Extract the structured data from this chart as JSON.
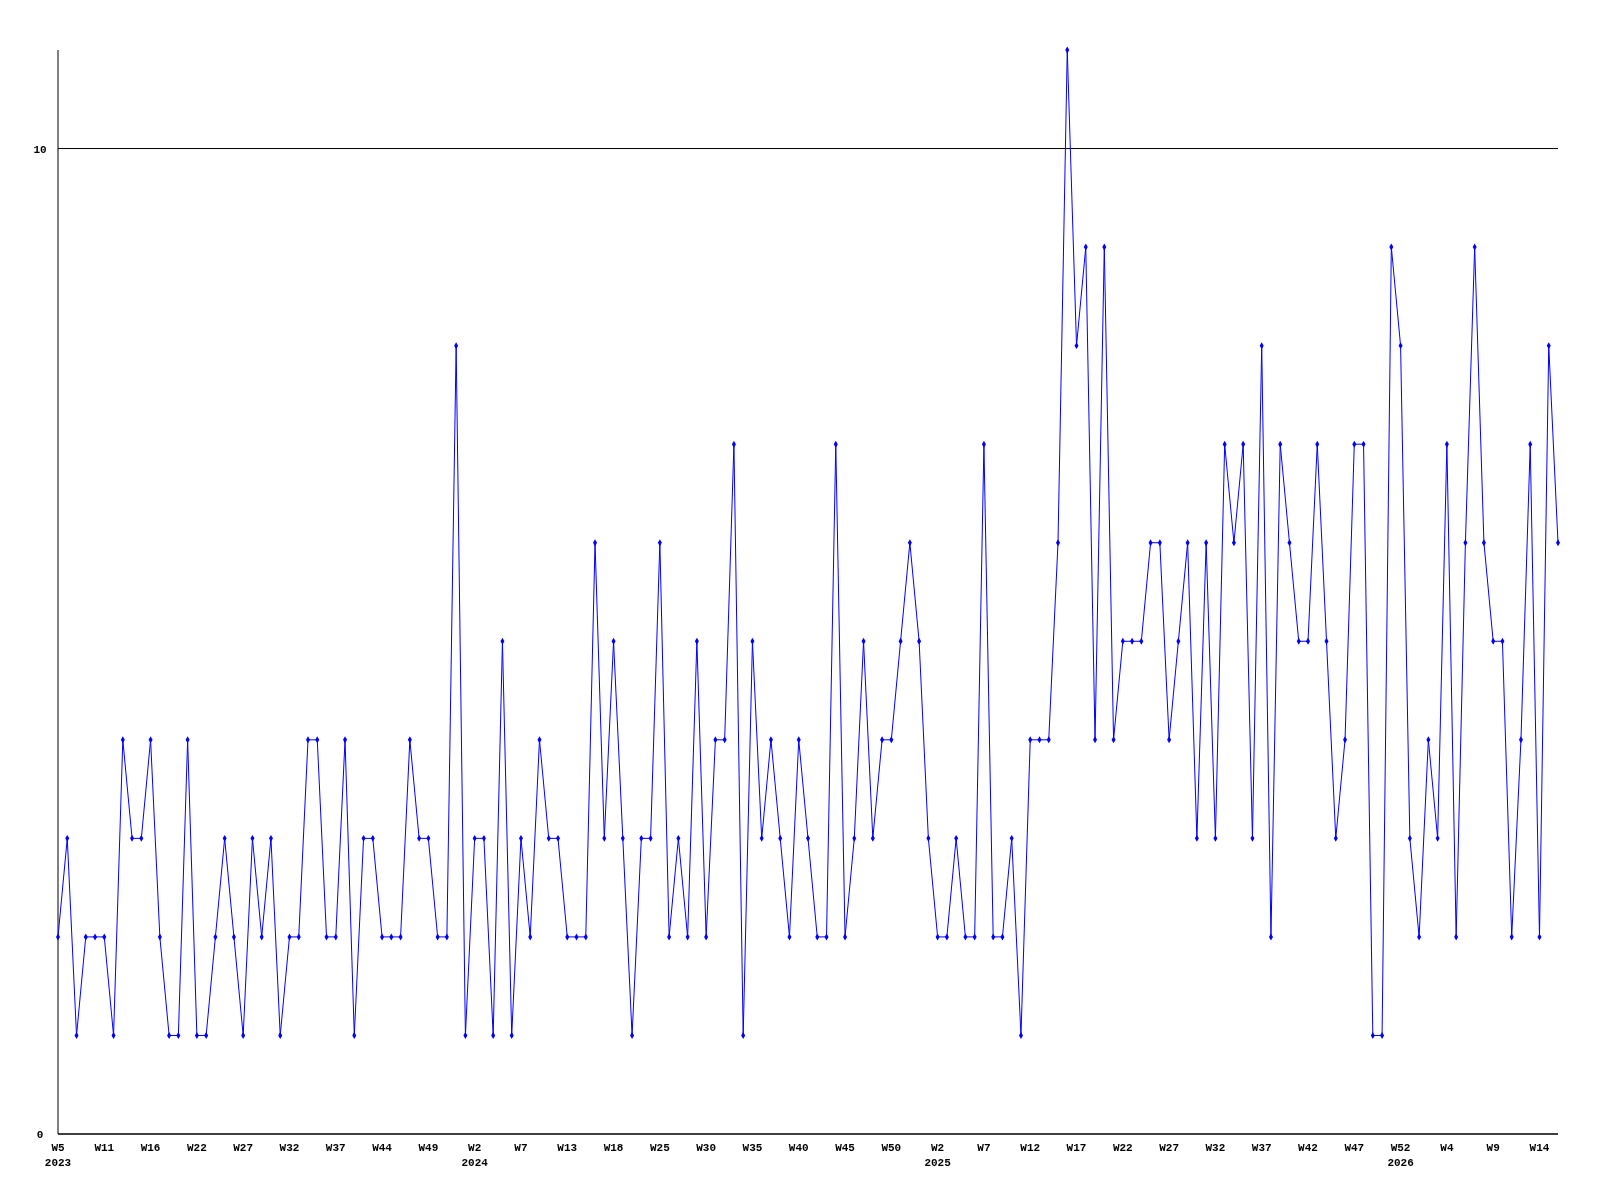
{
  "chart_data": {
    "type": "line",
    "categories": [
      "W5\n2023",
      null,
      null,
      null,
      null,
      "W11",
      null,
      null,
      null,
      null,
      "W16",
      null,
      null,
      null,
      null,
      "W22",
      null,
      null,
      null,
      null,
      "W27",
      null,
      null,
      null,
      null,
      "W32",
      null,
      null,
      null,
      null,
      "W37",
      null,
      null,
      null,
      null,
      "W44",
      null,
      null,
      null,
      null,
      "W49",
      null,
      null,
      null,
      null,
      "W2\n2024",
      null,
      null,
      null,
      null,
      "W7",
      null,
      null,
      null,
      null,
      "W13",
      null,
      null,
      null,
      null,
      "W18",
      null,
      null,
      null,
      null,
      "W25",
      null,
      null,
      null,
      null,
      "W30",
      null,
      null,
      null,
      null,
      "W35",
      null,
      null,
      null,
      null,
      "W40",
      null,
      null,
      null,
      null,
      "W45",
      null,
      null,
      null,
      null,
      "W50",
      null,
      null,
      null,
      null,
      "W2\n2025",
      null,
      null,
      null,
      null,
      "W7",
      null,
      null,
      null,
      null,
      "W12",
      null,
      null,
      null,
      null,
      "W17",
      null,
      null,
      null,
      null,
      "W22",
      null,
      null,
      null,
      null,
      "W27",
      null,
      null,
      null,
      null,
      "W32",
      null,
      null,
      null,
      null,
      "W37",
      null,
      null,
      null,
      null,
      "W42",
      null,
      null,
      null,
      null,
      "W47",
      null,
      null,
      null,
      null,
      "W52\n2026",
      null,
      null,
      null,
      null,
      "W4",
      null,
      null,
      null,
      null,
      "W9",
      null,
      null,
      null,
      null,
      "W14",
      null,
      null
    ],
    "series": [
      {
        "color": "#0000ff",
        "values": [
          2,
          3,
          1,
          2,
          2,
          2,
          1,
          4,
          3,
          3,
          4,
          2,
          1,
          1,
          4,
          1,
          1,
          2,
          3,
          2,
          1,
          3,
          2,
          3,
          1,
          2,
          2,
          4,
          4,
          2,
          2,
          4,
          1,
          3,
          3,
          2,
          2,
          2,
          4,
          3,
          3,
          2,
          2,
          8,
          1,
          3,
          3,
          1,
          5,
          1,
          3,
          2,
          4,
          3,
          3,
          2,
          2,
          2,
          6,
          3,
          5,
          3,
          1,
          3,
          3,
          6,
          2,
          3,
          2,
          5,
          2,
          4,
          4,
          7,
          1,
          5,
          3,
          4,
          3,
          2,
          4,
          3,
          2,
          2,
          7,
          2,
          3,
          5,
          3,
          4,
          4,
          5,
          6,
          5,
          3,
          2,
          2,
          3,
          2,
          2,
          7,
          2,
          2,
          3,
          1,
          4,
          4,
          4,
          6,
          11,
          8,
          9,
          4,
          9,
          4,
          5,
          5,
          5,
          6,
          6,
          4,
          5,
          6,
          3,
          6,
          3,
          7,
          6,
          7,
          3,
          8,
          2,
          7,
          6,
          5,
          5,
          7,
          5,
          3,
          4,
          7,
          7,
          1,
          1,
          9,
          8,
          3,
          2,
          4,
          3,
          7,
          2,
          6,
          9,
          6,
          5,
          5,
          2,
          4,
          7,
          2,
          8,
          6
        ]
      }
    ],
    "ylim": [
      0,
      11
    ],
    "yticks": [
      0,
      10
    ],
    "grid": "y",
    "marker": "diamond",
    "line_style": "solid"
  }
}
